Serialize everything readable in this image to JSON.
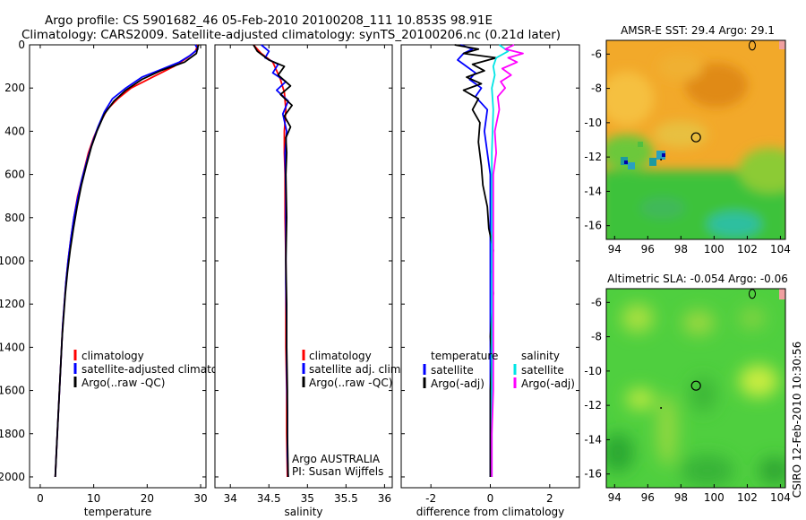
{
  "title": {
    "line1": "Argo profile: CS 5901682_46 05-Feb-2010 20100208_111 10.853S 98.91E",
    "line2": "Climatology: CARS2009. Satellite-adjusted climatology: synTS_20100206.nc (0.21d later)"
  },
  "credit": "CSIRO 12-Feb-2010 10:30:56",
  "colors": {
    "climatology": "#ff0000",
    "satellite": "#0000ff",
    "argo": "#000000",
    "salinity_satellite": "#00e5e5",
    "salinity_argo": "#ff00ff",
    "map_green": "#4cc83a",
    "map_orange": "#f0a020"
  },
  "chart_data": [
    {
      "type": "line",
      "panel": "temperature",
      "xlabel": "temperature",
      "ylabel": "",
      "xlim": [
        -2,
        31
      ],
      "ylim": [
        2050,
        0
      ],
      "xticks": [
        "0",
        "10",
        "20",
        "30"
      ],
      "xtick_values": [
        0,
        10,
        20,
        30
      ],
      "yticks": [
        "0",
        "200",
        "400",
        "600",
        "800",
        "1000",
        "1200",
        "1400",
        "1600",
        "1800",
        "2000"
      ],
      "ytick_values": [
        0,
        200,
        400,
        600,
        800,
        1000,
        1200,
        1400,
        1600,
        1800,
        2000
      ],
      "legend": [
        "climatology",
        "satellite-adjusted climatology",
        "Argo(..raw -QC)"
      ],
      "series": [
        {
          "name": "climatology",
          "color": "#ff0000",
          "points": [
            [
              29.5,
              0
            ],
            [
              29,
              30
            ],
            [
              27.5,
              60
            ],
            [
              25,
              100
            ],
            [
              21,
              150
            ],
            [
              17,
              200
            ],
            [
              14.5,
              250
            ],
            [
              12.5,
              300
            ],
            [
              11,
              370
            ],
            [
              10,
              430
            ],
            [
              9,
              500
            ],
            [
              8,
              600
            ],
            [
              7,
              700
            ],
            [
              6.3,
              800
            ],
            [
              5.7,
              900
            ],
            [
              5.2,
              1000
            ],
            [
              4.8,
              1100
            ],
            [
              4.5,
              1200
            ],
            [
              4.2,
              1300
            ],
            [
              4,
              1400
            ],
            [
              3.8,
              1500
            ],
            [
              3.6,
              1600
            ],
            [
              3.4,
              1700
            ],
            [
              3.2,
              1800
            ],
            [
              3,
              1900
            ],
            [
              2.8,
              2000
            ]
          ]
        },
        {
          "name": "satellite-adjusted climatology",
          "color": "#0000ff",
          "points": [
            [
              29,
              0
            ],
            [
              29.5,
              20
            ],
            [
              28,
              50
            ],
            [
              26,
              80
            ],
            [
              22,
              120
            ],
            [
              19,
              150
            ],
            [
              16,
              200
            ],
            [
              13.5,
              250
            ],
            [
              12,
              310
            ],
            [
              10.8,
              380
            ],
            [
              9.8,
              450
            ],
            [
              8.8,
              530
            ],
            [
              7.8,
              620
            ],
            [
              7,
              710
            ],
            [
              6.3,
              800
            ],
            [
              5.7,
              900
            ],
            [
              5.2,
              1000
            ],
            [
              4.8,
              1100
            ],
            [
              4.5,
              1200
            ],
            [
              4.2,
              1300
            ],
            [
              4,
              1400
            ],
            [
              3.8,
              1500
            ],
            [
              3.6,
              1600
            ],
            [
              3.4,
              1700
            ],
            [
              3.2,
              1800
            ],
            [
              3,
              1900
            ],
            [
              2.8,
              2000
            ]
          ]
        },
        {
          "name": "Argo(..raw -QC)",
          "color": "#000000",
          "points": [
            [
              29.6,
              0
            ],
            [
              29.2,
              40
            ],
            [
              27,
              80
            ],
            [
              22.5,
              120
            ],
            [
              19,
              160
            ],
            [
              16,
              210
            ],
            [
              13.8,
              260
            ],
            [
              12,
              320
            ],
            [
              10.6,
              400
            ],
            [
              9.6,
              470
            ],
            [
              8.6,
              560
            ],
            [
              7.7,
              650
            ],
            [
              6.9,
              750
            ],
            [
              6.2,
              850
            ],
            [
              5.6,
              950
            ],
            [
              5.1,
              1050
            ],
            [
              4.7,
              1150
            ],
            [
              4.4,
              1250
            ],
            [
              4.1,
              1350
            ],
            [
              3.9,
              1450
            ],
            [
              3.7,
              1550
            ],
            [
              3.5,
              1650
            ],
            [
              3.3,
              1750
            ],
            [
              3.1,
              1850
            ],
            [
              2.9,
              1950
            ],
            [
              2.8,
              2000
            ]
          ]
        }
      ]
    },
    {
      "type": "line",
      "panel": "salinity",
      "xlabel": "salinity",
      "ylabel": "",
      "xlim": [
        33.8,
        36.1
      ],
      "ylim": [
        2050,
        0
      ],
      "xticks": [
        "34",
        "34.5",
        "35",
        "35.5",
        "36"
      ],
      "xtick_values": [
        34,
        34.5,
        35,
        35.5,
        36
      ],
      "legend": [
        "climatology",
        "satellite adj. clim.",
        "Argo(..raw -QC)"
      ],
      "annotation": [
        "Argo AUSTRALIA",
        "PI: Susan Wijffels"
      ],
      "series": [
        {
          "name": "climatology",
          "color": "#ff0000",
          "points": [
            [
              34.3,
              0
            ],
            [
              34.4,
              40
            ],
            [
              34.55,
              80
            ],
            [
              34.6,
              120
            ],
            [
              34.65,
              160
            ],
            [
              34.7,
              220
            ],
            [
              34.72,
              300
            ],
            [
              34.7,
              400
            ],
            [
              34.7,
              500
            ],
            [
              34.71,
              600
            ],
            [
              34.71,
              800
            ],
            [
              34.72,
              1000
            ],
            [
              34.72,
              1200
            ],
            [
              34.72,
              1400
            ],
            [
              34.73,
              1600
            ],
            [
              34.73,
              1800
            ],
            [
              34.74,
              2000
            ]
          ]
        },
        {
          "name": "satellite adj. clim.",
          "color": "#0000ff",
          "points": [
            [
              34.4,
              0
            ],
            [
              34.5,
              30
            ],
            [
              34.45,
              60
            ],
            [
              34.62,
              90
            ],
            [
              34.55,
              130
            ],
            [
              34.72,
              170
            ],
            [
              34.6,
              210
            ],
            [
              34.75,
              260
            ],
            [
              34.68,
              320
            ],
            [
              34.73,
              400
            ],
            [
              34.71,
              500
            ],
            [
              34.72,
              700
            ],
            [
              34.72,
              900
            ],
            [
              34.72,
              1100
            ],
            [
              34.73,
              1300
            ],
            [
              34.73,
              1500
            ],
            [
              34.74,
              1700
            ],
            [
              34.74,
              1900
            ],
            [
              34.75,
              2000
            ]
          ]
        },
        {
          "name": "Argo(..raw -QC)",
          "color": "#000000",
          "points": [
            [
              34.3,
              0
            ],
            [
              34.35,
              30
            ],
            [
              34.5,
              70
            ],
            [
              34.7,
              100
            ],
            [
              34.62,
              140
            ],
            [
              34.78,
              190
            ],
            [
              34.65,
              230
            ],
            [
              34.8,
              280
            ],
            [
              34.7,
              330
            ],
            [
              34.78,
              380
            ],
            [
              34.72,
              430
            ],
            [
              34.73,
              500
            ],
            [
              34.72,
              600
            ],
            [
              34.73,
              800
            ],
            [
              34.72,
              1000
            ],
            [
              34.73,
              1200
            ],
            [
              34.73,
              1400
            ],
            [
              34.74,
              1600
            ],
            [
              34.74,
              1800
            ],
            [
              34.75,
              2000
            ]
          ]
        }
      ]
    },
    {
      "type": "line",
      "panel": "difference",
      "xlabel": "difference from climatology",
      "ylabel": "",
      "xlim": [
        -3,
        3
      ],
      "ylim": [
        2050,
        0
      ],
      "xticks": [
        "-2",
        "0",
        "2"
      ],
      "xtick_values": [
        -2,
        0,
        2
      ],
      "legend_left_header": "temperature",
      "legend_left": [
        "satellite",
        "Argo(-adj)"
      ],
      "legend_right_header": "salinity",
      "legend_right": [
        "satellite",
        "Argo(-adj)"
      ],
      "series": [
        {
          "name": "temperature satellite",
          "color": "#0000ff",
          "points": [
            [
              -1,
              0
            ],
            [
              -0.6,
              20
            ],
            [
              -0.9,
              40
            ],
            [
              -1.1,
              70
            ],
            [
              -0.8,
              100
            ],
            [
              -0.5,
              130
            ],
            [
              -0.7,
              160
            ],
            [
              -0.3,
              200
            ],
            [
              -0.5,
              240
            ],
            [
              -0.1,
              300
            ],
            [
              -0.2,
              400
            ],
            [
              0,
              600
            ],
            [
              0,
              800
            ],
            [
              0,
              1000
            ],
            [
              0,
              1200
            ],
            [
              0,
              1400
            ],
            [
              0,
              1600
            ],
            [
              0,
              1800
            ],
            [
              0,
              2000
            ]
          ]
        },
        {
          "name": "temperature Argo(-adj)",
          "color": "#000000",
          "points": [
            [
              -1.2,
              0
            ],
            [
              -0.4,
              20
            ],
            [
              -0.9,
              40
            ],
            [
              0.2,
              60
            ],
            [
              -0.6,
              90
            ],
            [
              -0.2,
              120
            ],
            [
              -0.8,
              150
            ],
            [
              -0.3,
              180
            ],
            [
              -0.9,
              210
            ],
            [
              -0.4,
              250
            ],
            [
              -0.6,
              300
            ],
            [
              -0.35,
              360
            ],
            [
              -0.4,
              450
            ],
            [
              -0.3,
              560
            ],
            [
              -0.25,
              650
            ],
            [
              -0.1,
              750
            ],
            [
              -0.05,
              850
            ],
            [
              0.1,
              950
            ],
            [
              0.05,
              1050
            ],
            [
              0.1,
              1150
            ],
            [
              0.05,
              1250
            ],
            [
              0,
              1350
            ],
            [
              0.05,
              1450
            ],
            [
              0,
              1600
            ],
            [
              0,
              1800
            ],
            [
              0,
              2000
            ]
          ]
        },
        {
          "name": "salinity satellite",
          "color": "#00e5e5",
          "points": [
            [
              0.3,
              0
            ],
            [
              0.6,
              30
            ],
            [
              0.2,
              60
            ],
            [
              0.1,
              100
            ],
            [
              0.15,
              140
            ],
            [
              0.05,
              200
            ],
            [
              0.1,
              300
            ],
            [
              0.05,
              500
            ],
            [
              0.05,
              700
            ],
            [
              0.05,
              900
            ],
            [
              0.05,
              1100
            ],
            [
              0.05,
              1300
            ],
            [
              0.05,
              1500
            ],
            [
              0.05,
              1700
            ],
            [
              0.05,
              1900
            ],
            [
              0.05,
              2000
            ]
          ]
        },
        {
          "name": "salinity Argo(-adj)",
          "color": "#ff00ff",
          "points": [
            [
              0.8,
              0
            ],
            [
              0.5,
              20
            ],
            [
              1.1,
              40
            ],
            [
              0.6,
              60
            ],
            [
              0.9,
              80
            ],
            [
              0.4,
              110
            ],
            [
              0.7,
              140
            ],
            [
              0.35,
              170
            ],
            [
              0.5,
              200
            ],
            [
              0.25,
              240
            ],
            [
              0.3,
              300
            ],
            [
              0.15,
              400
            ],
            [
              0.2,
              500
            ],
            [
              0.1,
              600
            ],
            [
              0.1,
              800
            ],
            [
              0.1,
              1000
            ],
            [
              0.1,
              1200
            ],
            [
              0.1,
              1400
            ],
            [
              0.1,
              1600
            ],
            [
              0.05,
              1800
            ],
            [
              0.05,
              2000
            ]
          ]
        }
      ]
    },
    {
      "type": "heatmap",
      "panel": "sst-map",
      "title": "AMSR-E SST: 29.4  Argo: 29.1",
      "xlim": [
        93.5,
        104.3
      ],
      "ylim": [
        -16.8,
        -5.2
      ],
      "xticks": [
        "94",
        "96",
        "98",
        "100",
        "102",
        "104"
      ],
      "xtick_values": [
        94,
        96,
        98,
        100,
        102,
        104
      ],
      "yticks": [
        "-6",
        "-8",
        "-10",
        "-12",
        "-14",
        "-16"
      ],
      "ytick_values": [
        -6,
        -8,
        -10,
        -12,
        -14,
        -16
      ],
      "marker": [
        98.91,
        -10.853
      ]
    },
    {
      "type": "heatmap",
      "panel": "sla-map",
      "title": "Altimetric SLA: -0.054  Argo: -0.06",
      "xlim": [
        93.5,
        104.3
      ],
      "ylim": [
        -16.8,
        -5.2
      ],
      "xticks": [
        "94",
        "96",
        "98",
        "100",
        "102",
        "104"
      ],
      "xtick_values": [
        94,
        96,
        98,
        100,
        102,
        104
      ],
      "yticks": [
        "-6",
        "-8",
        "-10",
        "-12",
        "-14",
        "-16"
      ],
      "ytick_values": [
        -6,
        -8,
        -10,
        -12,
        -14,
        -16
      ],
      "marker": [
        98.91,
        -10.853
      ]
    }
  ]
}
